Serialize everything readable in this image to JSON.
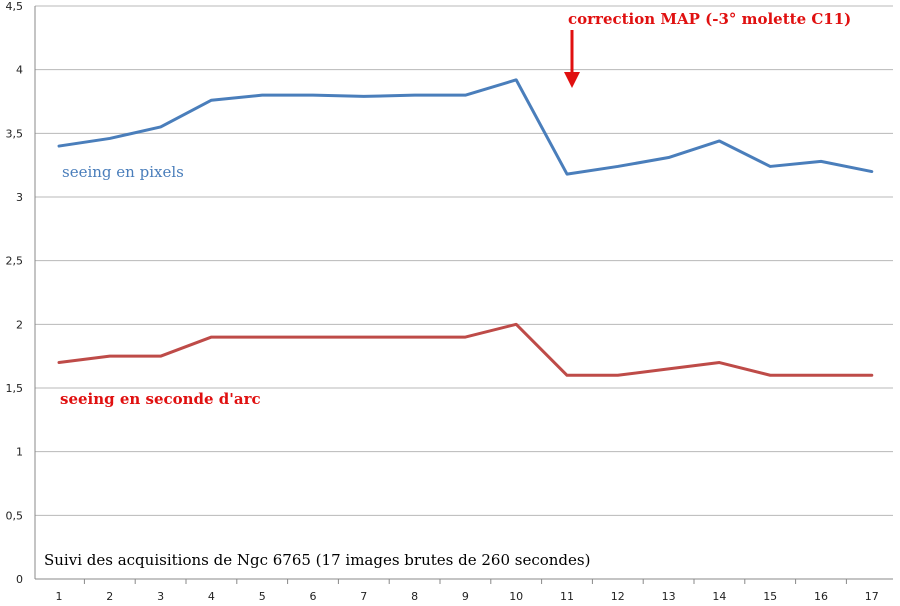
{
  "chart_data": {
    "type": "line",
    "categories": [
      "1",
      "2",
      "3",
      "4",
      "5",
      "6",
      "7",
      "8",
      "9",
      "10",
      "11",
      "12",
      "13",
      "14",
      "15",
      "16",
      "17"
    ],
    "y_ticks": [
      "0",
      "0,5",
      "1",
      "1,5",
      "2",
      "2,5",
      "3",
      "3,5",
      "4",
      "4,5"
    ],
    "ylim": [
      0,
      4.5
    ],
    "grid": true,
    "series": [
      {
        "name": "seeing en pixels",
        "color": "#4a7ebb",
        "values": [
          3.4,
          3.46,
          3.55,
          3.76,
          3.8,
          3.8,
          3.79,
          3.8,
          3.8,
          3.92,
          3.18,
          3.24,
          3.31,
          3.44,
          3.24,
          3.28,
          3.2
        ]
      },
      {
        "name": "seeing en seconde d'arc",
        "color": "#be4b48",
        "values": [
          1.7,
          1.75,
          1.75,
          1.9,
          1.9,
          1.9,
          1.9,
          1.9,
          1.9,
          2.0,
          1.6,
          1.6,
          1.65,
          1.7,
          1.6,
          1.6,
          1.6
        ]
      }
    ],
    "annotations": {
      "correction": {
        "text": "correction MAP (-3° molette C11)",
        "color": "#e01010",
        "at_category": "11"
      },
      "caption": "Suivi des acquisitions de Ngc 6765  (17 images brutes de 260 secondes)"
    },
    "colors": {
      "grid": "#b8b8b8",
      "axis": "#888888"
    }
  }
}
